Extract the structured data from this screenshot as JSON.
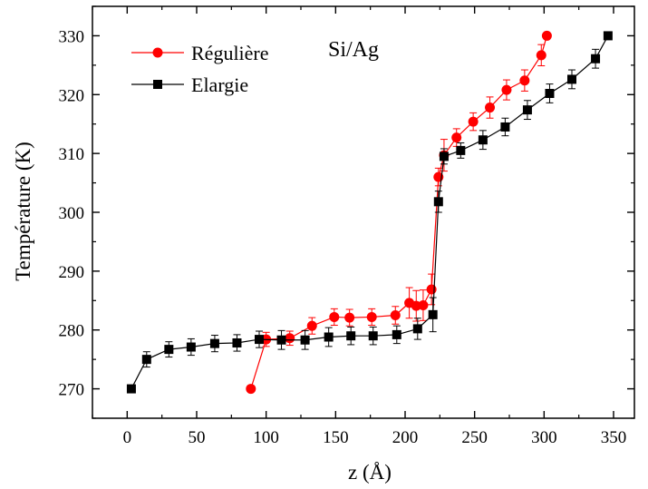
{
  "chart_data": {
    "type": "scatter",
    "title": "",
    "annotation": "Si/Ag",
    "xlabel": "z (Å)",
    "ylabel": "Température (K)",
    "xlim": [
      -25,
      365
    ],
    "ylim": [
      265,
      335
    ],
    "xticks": [
      0,
      50,
      100,
      150,
      200,
      250,
      300,
      350
    ],
    "yticks": [
      270,
      280,
      290,
      300,
      310,
      320,
      330
    ],
    "grid": false,
    "legend_position": "top-left",
    "series": [
      {
        "name": "Régulière",
        "color": "#ff0000",
        "marker": "circle",
        "x": [
          89,
          100,
          117,
          133,
          149,
          160,
          176,
          193,
          203,
          208,
          213,
          219,
          224,
          228,
          237,
          249,
          261,
          273,
          286,
          298,
          302
        ],
        "y": [
          270.0,
          278.4,
          278.6,
          280.7,
          282.2,
          282.1,
          282.2,
          282.5,
          284.6,
          284.1,
          284.2,
          286.9,
          306.0,
          309.7,
          312.7,
          315.4,
          317.8,
          320.8,
          322.4,
          326.7,
          330.0
        ],
        "err": [
          0,
          1.2,
          1.2,
          1.4,
          1.4,
          1.4,
          1.4,
          1.5,
          2.6,
          2.6,
          2.6,
          2.6,
          1.5,
          2.7,
          1.5,
          1.5,
          1.8,
          1.7,
          1.8,
          1.8,
          0
        ]
      },
      {
        "name": "Elargie",
        "color": "#000000",
        "marker": "square",
        "x": [
          3,
          14,
          30,
          46,
          63,
          79,
          95,
          111,
          128,
          145,
          161,
          177,
          194,
          209,
          220,
          224,
          228,
          240,
          256,
          272,
          288,
          304,
          320,
          337,
          346
        ],
        "y": [
          270.0,
          275.0,
          276.7,
          277.1,
          277.7,
          277.8,
          278.4,
          278.3,
          278.3,
          278.8,
          279.0,
          279.0,
          279.2,
          280.2,
          282.6,
          301.8,
          309.5,
          310.5,
          312.3,
          314.5,
          317.4,
          320.2,
          322.6,
          326.1,
          330.0
        ],
        "err": [
          0,
          1.3,
          1.3,
          1.4,
          1.4,
          1.4,
          1.4,
          1.6,
          1.6,
          1.6,
          1.5,
          1.5,
          1.5,
          1.8,
          2.9,
          1.8,
          1.3,
          1.3,
          1.6,
          1.5,
          1.6,
          1.6,
          1.6,
          1.6,
          0
        ]
      }
    ]
  }
}
